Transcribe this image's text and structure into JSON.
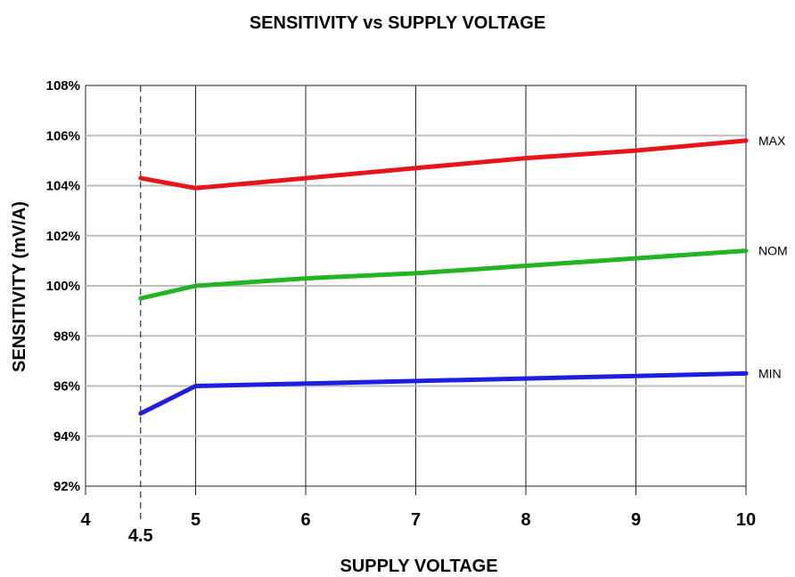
{
  "chart_data": {
    "type": "line",
    "title": "SENSITIVITY vs SUPPLY VOLTAGE",
    "xlabel": "SUPPLY VOLTAGE",
    "ylabel": "SENSITIVITY (mV/A)",
    "xlim": [
      4,
      10
    ],
    "ylim": [
      92,
      108
    ],
    "x_ticks": [
      4,
      5,
      6,
      7,
      8,
      9,
      10
    ],
    "x_tick_labels": [
      "4",
      "5",
      "6",
      "7",
      "8",
      "9",
      "10"
    ],
    "y_ticks": [
      92,
      94,
      96,
      98,
      100,
      102,
      104,
      106,
      108
    ],
    "y_tick_labels": [
      "92%",
      "94%",
      "96%",
      "98%",
      "100%",
      "102%",
      "104%",
      "106%",
      "108%"
    ],
    "grid": true,
    "reference_line": {
      "x": 4.5,
      "label": "4.5",
      "style": "dashed"
    },
    "series": [
      {
        "name": "MAX",
        "color": "#e8141c",
        "x": [
          4.5,
          5,
          6,
          7,
          8,
          9,
          10
        ],
        "values": [
          104.3,
          103.9,
          104.3,
          104.7,
          105.1,
          105.4,
          105.8
        ]
      },
      {
        "name": "NOM",
        "color": "#21b524",
        "x": [
          4.5,
          5,
          6,
          7,
          8,
          9,
          10
        ],
        "values": [
          99.5,
          100.0,
          100.3,
          100.5,
          100.8,
          101.1,
          101.4
        ]
      },
      {
        "name": "MIN",
        "color": "#1e1ee0",
        "x": [
          4.5,
          5,
          6,
          7,
          8,
          9,
          10
        ],
        "values": [
          94.9,
          96.0,
          96.1,
          96.2,
          96.3,
          96.4,
          96.5
        ]
      }
    ]
  }
}
